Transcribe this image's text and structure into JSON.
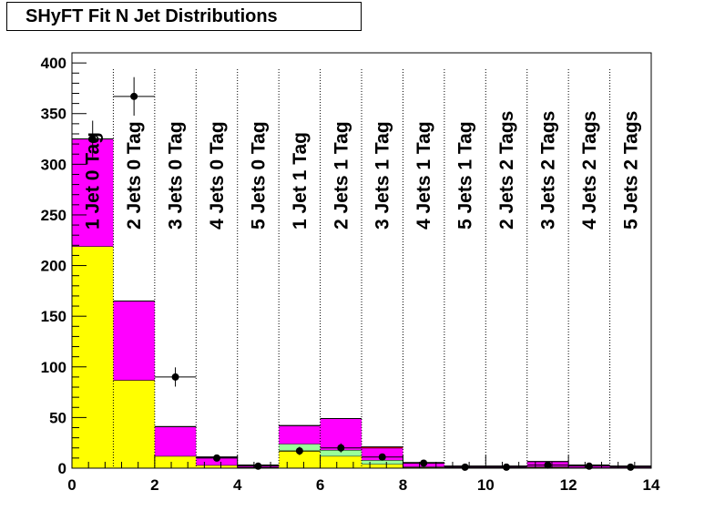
{
  "chart_data": {
    "type": "bar",
    "title": "SHyFT Fit N Jet Distributions",
    "xlabel": "",
    "ylabel": "",
    "xlim": [
      0,
      14
    ],
    "ylim": [
      0,
      410
    ],
    "x_ticks": [
      0,
      2,
      4,
      6,
      8,
      10,
      12,
      14
    ],
    "y_ticks": [
      0,
      50,
      100,
      150,
      200,
      250,
      300,
      350,
      400
    ],
    "bin_edges": [
      0,
      1,
      2,
      3,
      4,
      5,
      6,
      7,
      8,
      9,
      10,
      11,
      12,
      13,
      14
    ],
    "bin_labels": [
      "1 Jet  0 Tag",
      "2 Jets 0 Tag",
      "3 Jets 0 Tag",
      "4 Jets 0 Tag",
      "5 Jets 0 Tag",
      "1 Jet  1 Tag",
      "2 Jets 1 Tag",
      "3 Jets 1 Tag",
      "4 Jets 1 Tag",
      "5 Jets 1 Tag",
      "2 Jets 2 Tags",
      "3 Jets 2 Tags",
      "4 Jets 2 Tags",
      "5 Jets 2 Tags"
    ],
    "stacked": true,
    "series": [
      {
        "color": "#ffff00",
        "values": [
          219,
          87,
          12,
          3,
          1,
          17,
          12,
          4,
          1,
          0.5,
          0.5,
          1,
          0.5,
          0.3
        ]
      },
      {
        "color": "#99ff99",
        "values": [
          0,
          0,
          0,
          0,
          0,
          7,
          6,
          4,
          0.5,
          0.2,
          0.2,
          0.5,
          0.2,
          0.1
        ]
      },
      {
        "color": "#ff00ff",
        "values": [
          106,
          78,
          29,
          8,
          2,
          18,
          31,
          12,
          4,
          1.3,
          1.3,
          5,
          2.3,
          1.6
        ]
      },
      {
        "color": "#ff0000",
        "values": [
          0,
          0,
          0,
          0,
          0,
          0,
          0,
          1,
          0,
          0,
          0,
          0,
          0,
          0
        ]
      }
    ],
    "data_points": {
      "x": [
        0.5,
        1.5,
        2.5,
        3.5,
        4.5,
        5.5,
        6.5,
        7.5,
        8.5,
        9.5,
        10.5,
        11.5,
        12.5,
        13.5
      ],
      "y": [
        325,
        367,
        90,
        10,
        2,
        17,
        20,
        11,
        5,
        1,
        1,
        3,
        2,
        1
      ],
      "yerr": [
        18,
        19,
        9.5,
        3.2,
        1.4,
        4.1,
        4.5,
        3.3,
        2.2,
        1,
        1,
        1.7,
        1.4,
        1
      ]
    },
    "colors": {
      "frame": "#000000",
      "separator": "#000000"
    }
  }
}
